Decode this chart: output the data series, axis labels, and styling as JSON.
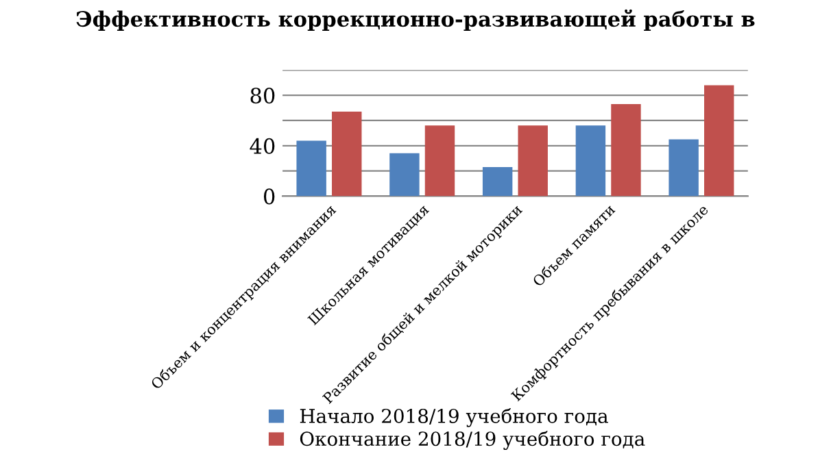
{
  "chart_data": {
    "type": "bar",
    "title": "Эффективность коррекционно-развивающей работы в",
    "categories": [
      "Объем и концентрация внимания",
      "Школьная мотивация",
      "Развитие общей и мелкой моторики",
      "Объем памяти",
      "Комфортность пребывания в школе"
    ],
    "series": [
      {
        "name": "Начало 2018/19 учебного года",
        "color": "#4f81bd",
        "values": [
          44,
          34,
          23,
          56,
          45
        ]
      },
      {
        "name": "Окончание 2018/19 учебного года",
        "color": "#c0504d",
        "values": [
          67,
          56,
          56,
          73,
          88
        ]
      }
    ],
    "ylim": [
      0,
      100
    ],
    "yticks": [
      0,
      {
        "value": 20,
        "label": null
      },
      40,
      {
        "value": 60,
        "label": null
      },
      80,
      {
        "value": 100,
        "label": null
      }
    ],
    "grid": "y",
    "legend": "bottom"
  }
}
